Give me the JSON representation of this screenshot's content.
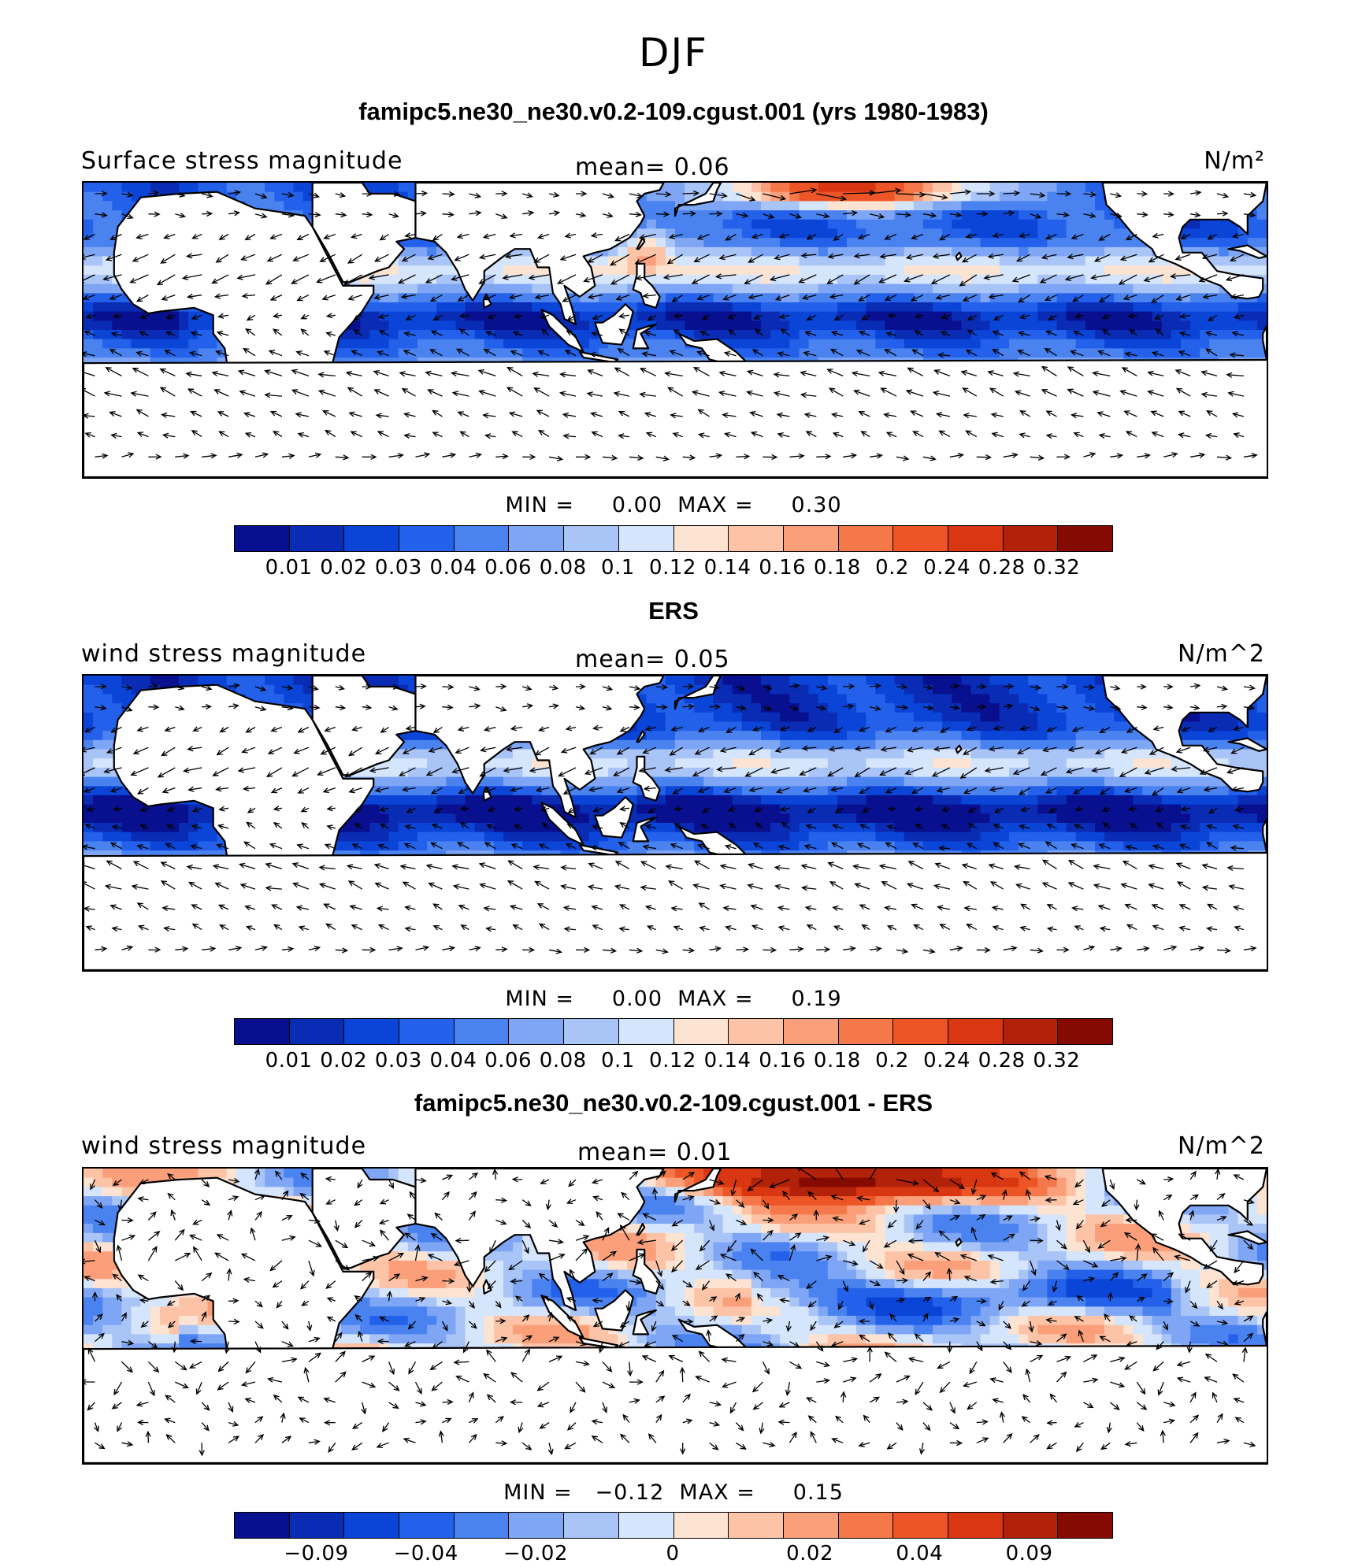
{
  "figure": {
    "season": "DJF",
    "colors": [
      "#08108f",
      "#0a2cb5",
      "#0b45d8",
      "#2461ea",
      "#4a82f0",
      "#7fa6f5",
      "#a9c4f7",
      "#d5e5fb",
      "#fde3d2",
      "#fcc3a7",
      "#fa9f7a",
      "#f47849",
      "#ed5526",
      "#d83712",
      "#b22109",
      "#840a02"
    ]
  },
  "panels": [
    {
      "title": "famipc5.ne30_ne30.v0.2-109.cgust.001 (yrs 1980-1983)",
      "left_label": "Surface stress magnitude",
      "right_label": "N/m²",
      "mean_text": "mean=    0.06",
      "minmax_text": "MIN =     0.00  MAX =     0.30",
      "ticks": [
        "0.01",
        "0.02",
        "0.03",
        "0.04",
        "0.06",
        "0.08",
        "0.1",
        "0.12",
        "0.14",
        "0.16",
        "0.18",
        "0.2",
        "0.24",
        "0.28",
        "0.32"
      ],
      "field": "model"
    },
    {
      "title": "ERS",
      "left_label": "wind stress magnitude",
      "right_label": "N/m^2",
      "mean_text": "mean=    0.05",
      "minmax_text": "MIN =     0.00  MAX =     0.19",
      "ticks": [
        "0.01",
        "0.02",
        "0.03",
        "0.04",
        "0.06",
        "0.08",
        "0.1",
        "0.12",
        "0.14",
        "0.16",
        "0.18",
        "0.2",
        "0.24",
        "0.28",
        "0.32"
      ],
      "field": "obs"
    },
    {
      "title": "famipc5.ne30_ne30.v0.2-109.cgust.001 - ERS",
      "left_label": "wind stress magnitude",
      "right_label": "N/m^2",
      "mean_text": "mean=    0.01",
      "minmax_text": "MIN =   −0.12  MAX =     0.15",
      "ticks": [
        "−0.09",
        "−0.04",
        "−0.02",
        "0",
        "0.02",
        "0.04",
        "0.09"
      ],
      "field": "diff"
    }
  ]
}
